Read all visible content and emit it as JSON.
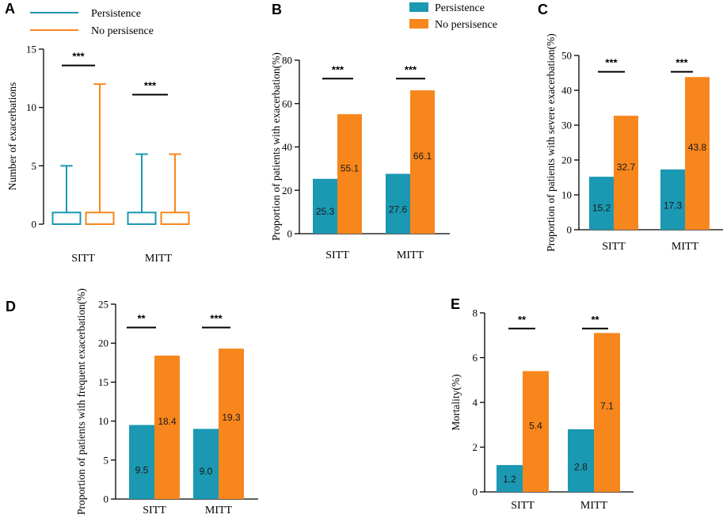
{
  "colors": {
    "persistence": "#1b98b2",
    "no_persistence": "#f7861d"
  },
  "legend_a": {
    "persistence": "Persistence",
    "no_persistence": "No persisence"
  },
  "legend_b": {
    "persistence": "Persistence",
    "no_persistence": "No persisence"
  },
  "chart_data": [
    {
      "panel": "A",
      "type": "boxplot",
      "ylabel": "Number of exacerbations",
      "ylim": [
        0,
        15
      ],
      "yticks": [
        0,
        5,
        10,
        15
      ],
      "categories": [
        "SITT",
        "MITT"
      ],
      "series": [
        {
          "name": "Persistence",
          "boxes": [
            {
              "min": 0,
              "q1": 0,
              "median": 0,
              "q3": 1,
              "max": 5
            },
            {
              "min": 0,
              "q1": 0,
              "median": 0,
              "q3": 1,
              "max": 6
            }
          ]
        },
        {
          "name": "No persisence",
          "boxes": [
            {
              "min": 0,
              "q1": 0,
              "median": 0,
              "q3": 1,
              "max": 12
            },
            {
              "min": 0,
              "q1": 0,
              "median": 0,
              "q3": 1,
              "max": 6
            }
          ]
        }
      ],
      "significance": [
        {
          "label": "***",
          "y": 13.6
        },
        {
          "label": "***",
          "y": 11.1
        }
      ]
    },
    {
      "panel": "B",
      "type": "bar",
      "ylabel": "Proportion of patients with exacerbation(%)",
      "ylim": [
        0,
        80
      ],
      "yticks": [
        0,
        20,
        40,
        60,
        80
      ],
      "categories": [
        "SITT",
        "MITT"
      ],
      "series": [
        {
          "name": "Persistence",
          "values": [
            25.3,
            27.6
          ],
          "labels": [
            "25.3",
            "27.6"
          ]
        },
        {
          "name": "No persisence",
          "values": [
            55.1,
            66.1
          ],
          "labels": [
            "55.1",
            "66.1"
          ]
        }
      ],
      "significance": [
        {
          "label": "***",
          "y": 71.5
        },
        {
          "label": "***",
          "y": 71.5
        }
      ]
    },
    {
      "panel": "C",
      "type": "bar",
      "ylabel": "Proportion of patients with severe exacerbation(%)",
      "ylim": [
        0,
        50
      ],
      "yticks": [
        0,
        10,
        20,
        30,
        40,
        50
      ],
      "categories": [
        "SITT",
        "MITT"
      ],
      "series": [
        {
          "name": "Persistence",
          "values": [
            15.2,
            17.3
          ],
          "labels": [
            "15.2",
            "17.3"
          ]
        },
        {
          "name": "No persisence",
          "values": [
            32.7,
            43.8
          ],
          "labels": [
            "32.7",
            "43.8"
          ]
        }
      ],
      "significance": [
        {
          "label": "***",
          "y": 45.3
        },
        {
          "label": "***",
          "y": 45.3
        }
      ]
    },
    {
      "panel": "D",
      "type": "bar",
      "ylabel": "Proportion of patients with frequent exacerbation(%)",
      "ylim": [
        0,
        25
      ],
      "yticks": [
        0,
        5,
        10,
        15,
        20,
        25
      ],
      "categories": [
        "SITT",
        "MITT"
      ],
      "series": [
        {
          "name": "Persistence",
          "values": [
            9.5,
            9.0
          ],
          "labels": [
            "9.5",
            "9.0"
          ]
        },
        {
          "name": "No persisence",
          "values": [
            18.4,
            19.3
          ],
          "labels": [
            "18.4",
            "19.3"
          ]
        }
      ],
      "significance": [
        {
          "label": "**",
          "y": 22.0
        },
        {
          "label": "***",
          "y": 22.0
        }
      ]
    },
    {
      "panel": "E",
      "type": "bar",
      "ylabel": "Mortality(%)",
      "ylim": [
        0,
        8
      ],
      "yticks": [
        0,
        2,
        4,
        6,
        8
      ],
      "categories": [
        "SITT",
        "MITT"
      ],
      "series": [
        {
          "name": "Persistence",
          "values": [
            1.2,
            2.8
          ],
          "labels": [
            "1.2",
            "2.8"
          ]
        },
        {
          "name": "No persisence",
          "values": [
            5.4,
            7.1
          ],
          "labels": [
            "5.4",
            "7.1"
          ]
        }
      ],
      "significance": [
        {
          "label": "**",
          "y": 7.3
        },
        {
          "label": "**",
          "y": 7.3
        }
      ]
    }
  ]
}
